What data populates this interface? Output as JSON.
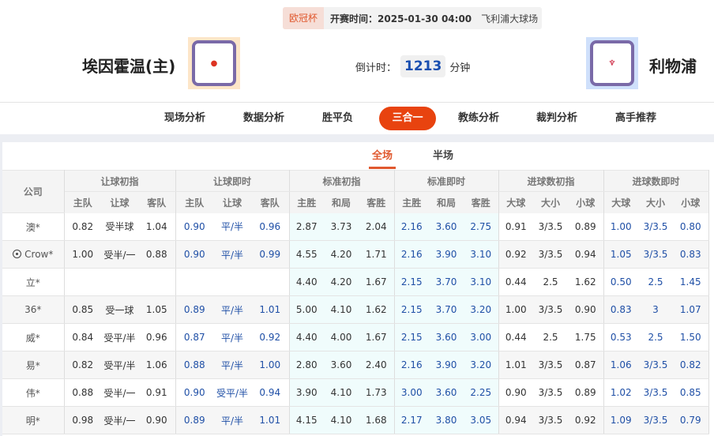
{
  "match": {
    "league": "欧冠杯",
    "start_time": "开赛时间：2025-01-30 04:00",
    "venue": "飞利浦大球场",
    "home": "埃因霍温(主)",
    "away": "利物浦",
    "home_logo": "PSV",
    "away_logo": "L.F.C.",
    "countdown_label": "倒计时：",
    "countdown": "1213",
    "countdown_unit": "分钟"
  },
  "colors": {
    "accent": "#e8430f",
    "blue": "#1f4fa6"
  },
  "nav": [
    "现场分析",
    "数据分析",
    "胜平负",
    "三合一",
    "教练分析",
    "裁判分析",
    "高手推荐"
  ],
  "nav_active": "三合一",
  "subtabs": [
    "全场",
    "半场"
  ],
  "table": {
    "company_header": "公司",
    "groups": [
      "让球初指",
      "让球即时",
      "标准初指",
      "标准即时",
      "进球数初指",
      "进球数即时"
    ],
    "subheaders": [
      "主队",
      "让球",
      "客队",
      "主队",
      "让球",
      "客队",
      "主胜",
      "和局",
      "客胜",
      "主胜",
      "和局",
      "客胜",
      "大球",
      "大小",
      "小球",
      "大球",
      "大小",
      "小球"
    ],
    "rows": [
      [
        "澳*",
        "0.82",
        "受半球",
        "1.04",
        "0.90",
        "平/半",
        "0.96",
        "2.87",
        "3.73",
        "2.04",
        "2.16",
        "3.60",
        "2.75",
        "0.91",
        "3/3.5",
        "0.89",
        "1.00",
        "3/3.5",
        "0.80"
      ],
      [
        "Crow*",
        "1.00",
        "受半/一",
        "0.88",
        "0.90",
        "平/半",
        "0.99",
        "4.55",
        "4.20",
        "1.71",
        "2.16",
        "3.90",
        "3.10",
        "0.92",
        "3/3.5",
        "0.94",
        "1.05",
        "3/3.5",
        "0.83"
      ],
      [
        "立*",
        "",
        "",
        "",
        "",
        "",
        "",
        "4.40",
        "4.20",
        "1.67",
        "2.15",
        "3.70",
        "3.10",
        "0.44",
        "2.5",
        "1.62",
        "0.50",
        "2.5",
        "1.45"
      ],
      [
        "36*",
        "0.85",
        "受一球",
        "1.05",
        "0.89",
        "平/半",
        "1.01",
        "5.00",
        "4.10",
        "1.62",
        "2.15",
        "3.70",
        "3.20",
        "1.00",
        "3/3.5",
        "0.90",
        "0.83",
        "3",
        "1.07"
      ],
      [
        "威*",
        "0.84",
        "受平/半",
        "0.96",
        "0.87",
        "平/半",
        "0.92",
        "4.40",
        "4.00",
        "1.67",
        "2.15",
        "3.60",
        "3.00",
        "0.44",
        "2.5",
        "1.75",
        "0.53",
        "2.5",
        "1.50"
      ],
      [
        "易*",
        "0.82",
        "受平/半",
        "1.06",
        "0.88",
        "平/半",
        "1.00",
        "2.80",
        "3.60",
        "2.40",
        "2.16",
        "3.90",
        "3.20",
        "1.01",
        "3/3.5",
        "0.87",
        "1.06",
        "3/3.5",
        "0.82"
      ],
      [
        "伟*",
        "0.88",
        "受半/一",
        "0.91",
        "0.90",
        "受平/半",
        "0.94",
        "3.90",
        "4.10",
        "1.73",
        "3.00",
        "3.60",
        "2.25",
        "0.90",
        "3/3.5",
        "0.89",
        "1.02",
        "3/3.5",
        "0.85"
      ],
      [
        "明*",
        "0.98",
        "受半/一",
        "0.90",
        "0.89",
        "平/半",
        "1.01",
        "4.15",
        "4.10",
        "1.68",
        "2.17",
        "3.80",
        "3.05",
        "0.94",
        "3/3.5",
        "0.92",
        "1.09",
        "3/3.5",
        "0.79"
      ]
    ]
  }
}
